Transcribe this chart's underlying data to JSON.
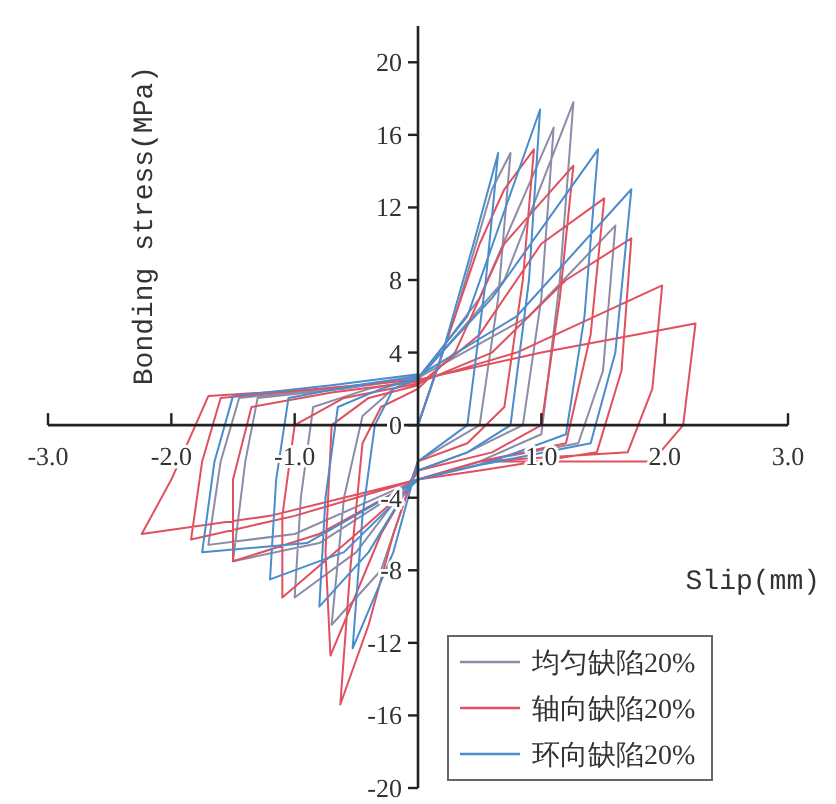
{
  "chart_data": {
    "type": "line",
    "xlabel": "Slip(mm)",
    "ylabel": "Bonding stress(MPa)",
    "xlim": [
      -3,
      3
    ],
    "ylim": [
      -20,
      22
    ],
    "xticks": [
      {
        "value": -3,
        "label": "-3.0"
      },
      {
        "value": -2,
        "label": "-2.0"
      },
      {
        "value": -1,
        "label": "-1.0"
      },
      {
        "value": 1,
        "label": "1.0"
      },
      {
        "value": 2,
        "label": "2.0"
      },
      {
        "value": 3,
        "label": "3.0"
      }
    ],
    "yticks": [
      -20,
      -16,
      -12,
      -8,
      -4,
      0,
      4,
      8,
      12,
      16,
      20
    ],
    "legend": "bottom right",
    "series": [
      {
        "name": "均匀缺陷20%",
        "color": "#8c8ca8",
        "x": [
          0,
          0.3,
          0.6,
          0.75,
          0.65,
          0.5,
          0,
          -0.3,
          -0.7,
          -0.6,
          -0.45,
          -0.2,
          0,
          0.5,
          1.1,
          1.0,
          0.85,
          0.4,
          0,
          -0.5,
          -1.0,
          -0.95,
          -0.85,
          -0.4,
          0,
          0.7,
          1.26,
          1.15,
          1.0,
          0.5,
          0,
          -0.8,
          -1.5,
          -1.4,
          -1.3,
          -0.6,
          0,
          0.9,
          1.6,
          1.5,
          1.3,
          0.5,
          0,
          -1.0,
          -1.7,
          -1.6,
          -1.45,
          -0.7,
          0
        ],
        "values": [
          0,
          6,
          13,
          15,
          7,
          0,
          -2,
          -8,
          -11,
          -4,
          0.5,
          2,
          2.5,
          7,
          16.4,
          7,
          0,
          -1.5,
          -2.5,
          -7,
          -9.5,
          -4,
          1,
          2,
          2.5,
          8,
          17.8,
          8,
          -0.5,
          -2,
          -3,
          -6.5,
          -7.5,
          -2,
          1.5,
          2,
          2.6,
          6,
          11,
          3,
          -1,
          -2,
          -3,
          -6,
          -6.6,
          -2,
          1.5,
          2,
          2.6
        ]
      },
      {
        "name": "轴向缺陷20%",
        "color": "#e0505f",
        "x": [
          0,
          0.2,
          0.5,
          0.7,
          0.94,
          0.85,
          0.7,
          0.4,
          0,
          -0.2,
          -0.4,
          -0.63,
          -0.55,
          -0.45,
          -0.3,
          0,
          0.3,
          0.7,
          1.26,
          1.15,
          1.0,
          0.6,
          0,
          -0.3,
          -0.71,
          -0.75,
          -0.7,
          -0.4,
          0,
          0.5,
          1.0,
          1.51,
          1.4,
          1.2,
          0.5,
          0,
          -0.5,
          -1.1,
          -1.1,
          -1.0,
          -0.6,
          0,
          0.6,
          1.2,
          1.73,
          1.65,
          1.45,
          0.5,
          0,
          -0.8,
          -1.5,
          -1.5,
          -1.35,
          -0.7,
          0,
          0.8,
          1.98,
          1.9,
          1.7,
          0.5,
          0,
          -1.0,
          -1.84,
          -1.75,
          -1.6,
          -0.8,
          0,
          1.0,
          2.25,
          2.15,
          1.9,
          0.5,
          0,
          -1.2,
          -2.24,
          -2.0,
          -1.7,
          -0.8,
          0
        ],
        "values": [
          0,
          4,
          10,
          13,
          15.2,
          8,
          1,
          -1,
          -2,
          -6,
          -11,
          -15.4,
          -8,
          -1,
          1,
          2,
          4,
          10,
          14.3,
          7,
          0,
          -1.5,
          -2.5,
          -6,
          -12.7,
          -7,
          0,
          1.5,
          2.2,
          5,
          10,
          12.5,
          5,
          -1,
          -2,
          -3,
          -6,
          -9.5,
          -5,
          0,
          1.5,
          2.3,
          4,
          8,
          10.3,
          3,
          -1.5,
          -2.5,
          -3,
          -6,
          -7.5,
          -3,
          1,
          1.8,
          2.4,
          4,
          7.7,
          2,
          -1.5,
          -2,
          -3,
          -5,
          -6.3,
          -2,
          1.5,
          2,
          2.5,
          4,
          5.6,
          0,
          -2,
          -2,
          -3,
          -5,
          -6.0,
          -3,
          1.6,
          2,
          2.5
        ]
      },
      {
        "name": "环向缺陷20%",
        "color": "#4a8ccc",
        "x": [
          0,
          0.2,
          0.45,
          0.65,
          0.55,
          0.4,
          0,
          -0.2,
          -0.53,
          -0.45,
          -0.35,
          -0.2,
          0,
          0.4,
          0.99,
          0.9,
          0.75,
          0.4,
          0,
          -0.4,
          -0.8,
          -0.75,
          -0.65,
          -0.3,
          0,
          0.6,
          1.46,
          1.35,
          1.2,
          0.6,
          0,
          -0.6,
          -1.2,
          -1.15,
          -1.05,
          -0.5,
          0,
          0.8,
          1.73,
          1.6,
          1.4,
          0.5,
          0,
          -0.9,
          -1.75,
          -1.65,
          -1.5,
          -0.7,
          0
        ],
        "values": [
          0,
          4,
          10,
          15,
          8,
          0,
          -2,
          -7,
          -12.3,
          -5,
          0,
          2,
          2.6,
          6,
          17.4,
          8,
          0,
          -1.5,
          -2.5,
          -7,
          -10,
          -4,
          1,
          2,
          2.6,
          7,
          15.2,
          6,
          -0.5,
          -2,
          -3,
          -7,
          -8.5,
          -3,
          1.5,
          2.2,
          2.7,
          6,
          13.0,
          4,
          -1,
          -2.2,
          -3,
          -6.5,
          -7,
          -2,
          1.6,
          2.2,
          2.8
        ]
      }
    ]
  }
}
